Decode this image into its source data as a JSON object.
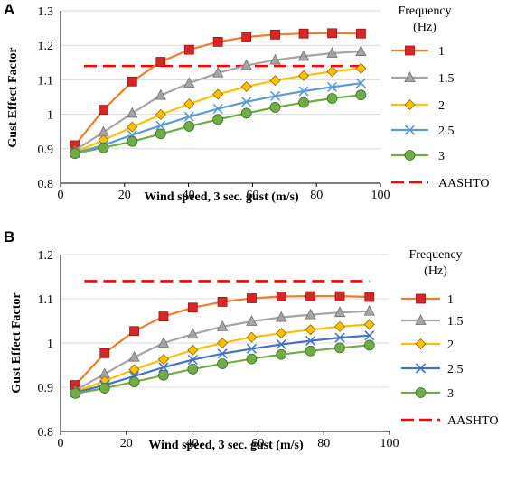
{
  "chart_data": [
    {
      "panel_label": "A",
      "type": "line",
      "xlabel": "Wind speed, 3 sec. gust (m/s)",
      "ylabel": "Gust Effect Factor",
      "xlim": [
        0,
        100
      ],
      "ylim": [
        0.8,
        1.3
      ],
      "x_ticks": [
        "0",
        "20",
        "40",
        "60",
        "80",
        "100"
      ],
      "y_ticks": [
        "0.8",
        "0.9",
        "1",
        "1.1",
        "1.2",
        "1.3"
      ],
      "grid": "horizontal",
      "legend": {
        "title_line1": "Frequency",
        "title_line2": "(Hz)",
        "placement": "right"
      },
      "x": [
        4.5,
        13.4,
        22.4,
        31.3,
        40.2,
        49.2,
        58.1,
        67.1,
        76,
        84.9,
        93.9
      ],
      "series": [
        {
          "name": "1",
          "color": "#ed7d31",
          "marker": "square",
          "marker_color": "#d62728",
          "values": [
            0.91,
            1.013,
            1.095,
            1.152,
            1.187,
            1.21,
            1.224,
            1.231,
            1.234,
            1.235,
            1.234
          ]
        },
        {
          "name": "1.5",
          "color": "#a5a5a5",
          "marker": "triangle",
          "marker_color": "#a5a5a5",
          "values": [
            0.895,
            0.948,
            1.003,
            1.055,
            1.09,
            1.12,
            1.142,
            1.157,
            1.168,
            1.177,
            1.182
          ]
        },
        {
          "name": "2",
          "color": "#ffc000",
          "marker": "diamond",
          "marker_color": "#ffc000",
          "values": [
            0.89,
            0.925,
            0.963,
            0.999,
            1.03,
            1.058,
            1.08,
            1.098,
            1.112,
            1.124,
            1.133
          ]
        },
        {
          "name": "2.5",
          "color": "#5b9bd5",
          "marker": "x",
          "marker_color": "#5b9bd5",
          "values": [
            0.888,
            0.91,
            0.94,
            0.967,
            0.993,
            1.016,
            1.036,
            1.053,
            1.067,
            1.079,
            1.09
          ]
        },
        {
          "name": "3",
          "color": "#70ad47",
          "marker": "circle",
          "marker_color": "#70ad47",
          "values": [
            0.886,
            0.903,
            0.921,
            0.943,
            0.965,
            0.985,
            1.003,
            1.02,
            1.034,
            1.046,
            1.056
          ]
        }
      ],
      "reference": {
        "name": "AASHTO",
        "color": "#ff0000",
        "value": 1.14,
        "x_range": [
          4.5,
          93.9
        ]
      }
    },
    {
      "panel_label": "B",
      "type": "line",
      "xlabel": "Wind speed, 3 sec. gust (m/s)",
      "ylabel": "Gust Effect Factor",
      "xlim": [
        0,
        100
      ],
      "ylim": [
        0.8,
        1.2
      ],
      "x_ticks": [
        "0",
        "20",
        "40",
        "60",
        "80",
        "100"
      ],
      "y_ticks": [
        "0.8",
        "0.9",
        "1",
        "1.1",
        "1.2"
      ],
      "grid": "horizontal",
      "legend": {
        "title_line1": "Frequency",
        "title_line2": "(Hz)",
        "placement": "right"
      },
      "x": [
        4.5,
        13.4,
        22.4,
        31.3,
        40.2,
        49.2,
        58.1,
        67.1,
        76,
        84.9,
        93.9
      ],
      "series": [
        {
          "name": "1",
          "color": "#ed7d31",
          "marker": "square",
          "marker_color": "#d62728",
          "values": [
            0.905,
            0.977,
            1.027,
            1.06,
            1.08,
            1.093,
            1.101,
            1.105,
            1.106,
            1.106,
            1.104
          ]
        },
        {
          "name": "1.5",
          "color": "#a5a5a5",
          "marker": "triangle",
          "marker_color": "#a5a5a5",
          "values": [
            0.893,
            0.93,
            0.968,
            1.0,
            1.02,
            1.037,
            1.049,
            1.058,
            1.064,
            1.069,
            1.072
          ]
        },
        {
          "name": "2",
          "color": "#ffc000",
          "marker": "diamond",
          "marker_color": "#ffc000",
          "values": [
            0.89,
            0.914,
            0.94,
            0.963,
            0.984,
            1.0,
            1.013,
            1.022,
            1.03,
            1.037,
            1.042
          ]
        },
        {
          "name": "2.5",
          "color": "#4472c4",
          "marker": "x",
          "marker_color": "#4472c4",
          "values": [
            0.888,
            0.905,
            0.925,
            0.945,
            0.962,
            0.976,
            0.987,
            0.997,
            1.005,
            1.012,
            1.017
          ]
        },
        {
          "name": "3",
          "color": "#70ad47",
          "marker": "circle",
          "marker_color": "#70ad47",
          "values": [
            0.886,
            0.898,
            0.912,
            0.927,
            0.941,
            0.953,
            0.964,
            0.974,
            0.982,
            0.989,
            0.995
          ]
        }
      ],
      "reference": {
        "name": "AASHTO",
        "color": "#ff0000",
        "value": 1.14,
        "x_range": [
          4.5,
          93.9
        ]
      }
    }
  ]
}
